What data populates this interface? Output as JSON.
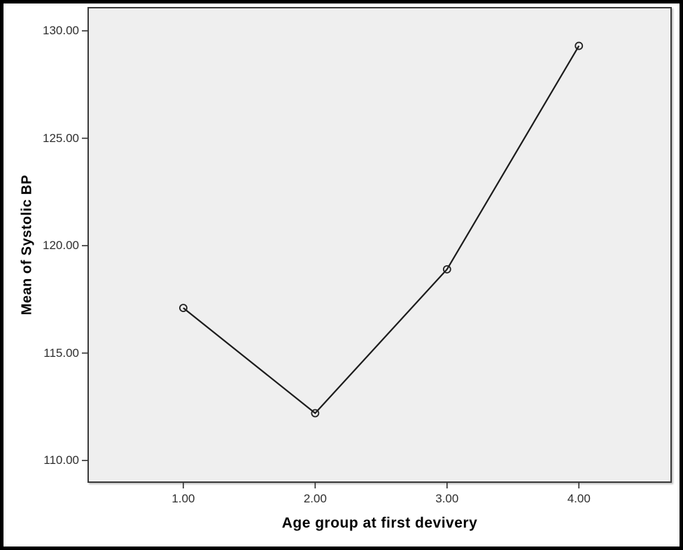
{
  "chart_data": {
    "type": "line",
    "title": "",
    "xlabel": "Age group at first devivery",
    "ylabel": "Mean of Systolic BP",
    "categories": [
      "1.00",
      "2.00",
      "3.00",
      "4.00"
    ],
    "x": [
      1,
      2,
      3,
      4
    ],
    "series": [
      {
        "name": "Mean of Systolic BP",
        "values": [
          117.1,
          112.2,
          118.9,
          129.3
        ]
      }
    ],
    "y_ticks": [
      "110.00",
      "115.00",
      "120.00",
      "125.00",
      "130.00"
    ],
    "y_tick_values": [
      110,
      115,
      120,
      125,
      130
    ],
    "ylim": [
      108.96,
      131.11
    ],
    "grid": false,
    "legend": "none",
    "marker": "open-circle",
    "colors": {
      "line": "#1c1c1c",
      "marker_stroke": "#222222",
      "plot_bg": "#efefef",
      "plot_border": "#3a3a3a",
      "outer_border": "#000000",
      "tick_label": "#2e2e2e",
      "axis_title": "#000000"
    }
  }
}
